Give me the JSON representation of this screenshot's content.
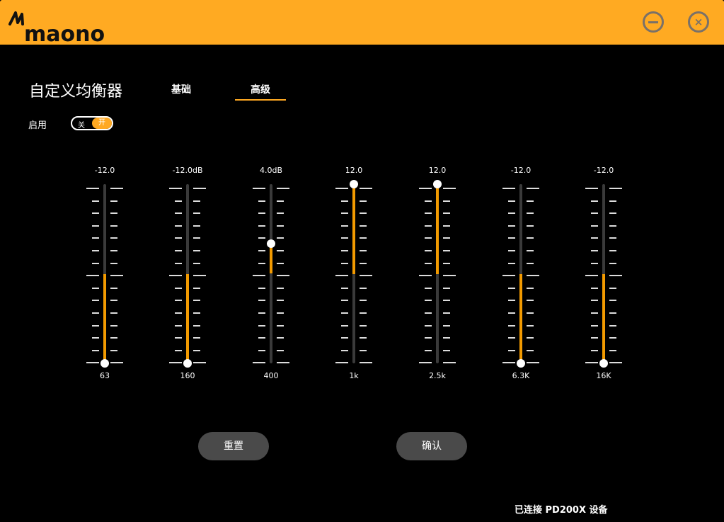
{
  "app": {
    "brand": "maono",
    "accent": "#FFA922"
  },
  "header": {
    "minimize_icon": "minus-circle-icon",
    "close_icon": "x-circle-icon",
    "close_glyph": "×"
  },
  "page": {
    "title": "自定义均衡器",
    "tabs": [
      {
        "label": "基础"
      },
      {
        "label": "高级",
        "active": true
      }
    ]
  },
  "enable": {
    "label": "启用",
    "off_label": "关",
    "on_label": "开",
    "state": "on"
  },
  "eq": {
    "min": -12,
    "max": 12,
    "bands": [
      {
        "freq": "63",
        "value": -12,
        "label": "-12.0"
      },
      {
        "freq": "160",
        "value": -12,
        "label": "-12.0dB"
      },
      {
        "freq": "400",
        "value": 4,
        "label": "4.0dB"
      },
      {
        "freq": "1k",
        "value": 12,
        "label": "12.0"
      },
      {
        "freq": "2.5k",
        "value": 12,
        "label": "12.0"
      },
      {
        "freq": "6.3K",
        "value": -12,
        "label": "-12.0"
      },
      {
        "freq": "16K",
        "value": -12,
        "label": "-12.0"
      }
    ]
  },
  "buttons": {
    "reset": "重置",
    "confirm": "确认"
  },
  "status": "已连接 PD200X 设备"
}
